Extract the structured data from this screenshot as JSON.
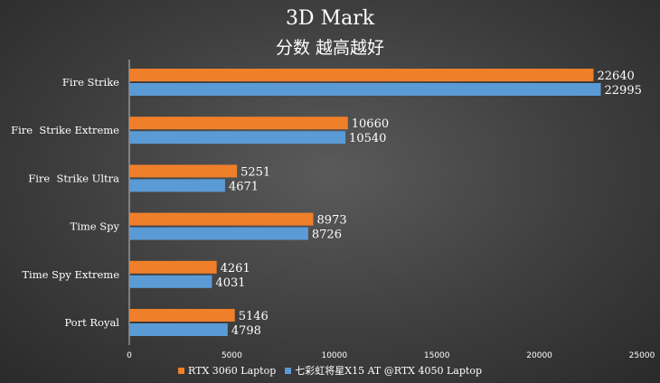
{
  "chart_data": {
    "type": "bar",
    "orientation": "horizontal",
    "title": "3D Mark",
    "subtitle": "分数 越高越好",
    "categories": [
      "Fire Strike",
      "Fire  Strike Extreme",
      "Fire  Strike Ultra",
      "Time Spy",
      "Time Spy Extreme",
      "Port Royal"
    ],
    "series": [
      {
        "name": "RTX 3060 Laptop",
        "color": "#f07f2a",
        "values": [
          22640,
          10660,
          5251,
          8973,
          4261,
          5146
        ]
      },
      {
        "name": "七彩虹将星X15 AT @RTX 4050 Laptop",
        "color": "#5b9bd5",
        "values": [
          22995,
          10540,
          4671,
          8726,
          4031,
          4798
        ]
      }
    ],
    "xlim": [
      0,
      25000
    ],
    "xticks": [
      "0",
      "5000",
      "10000",
      "15000",
      "20000",
      "25000"
    ],
    "grid": false,
    "legend_position": "bottom"
  }
}
